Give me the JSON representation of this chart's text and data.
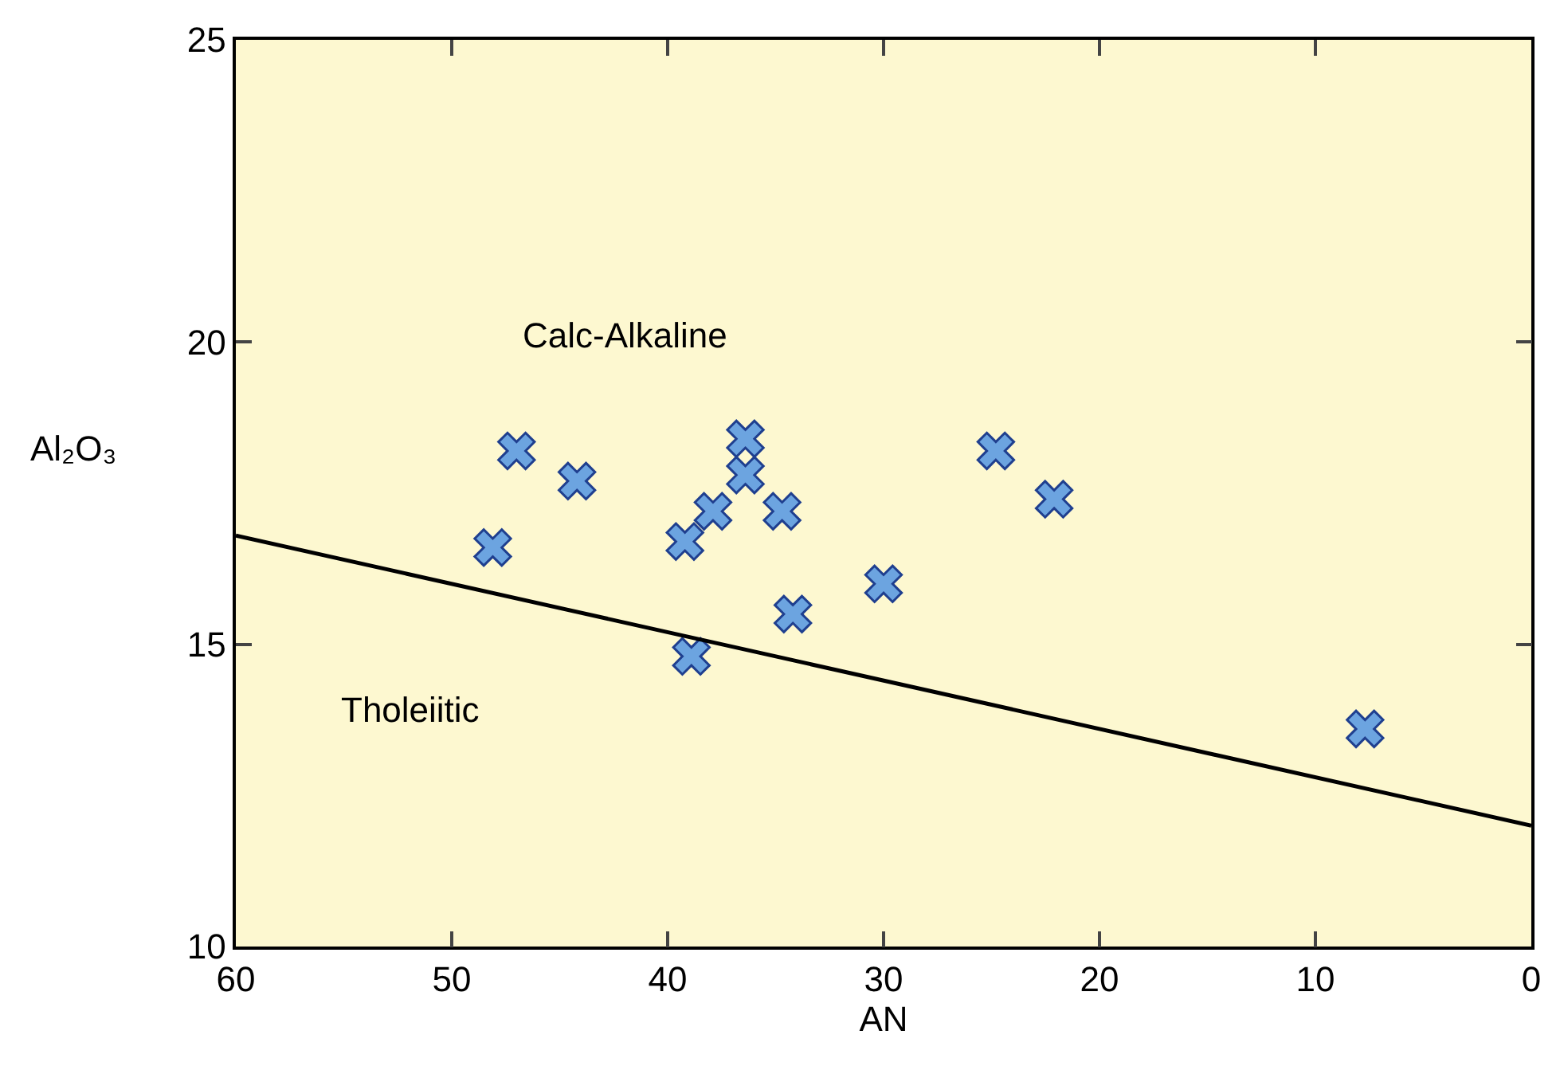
{
  "chart_data": {
    "type": "scatter",
    "xlabel": "AN",
    "ylabel": "Al₂O₃",
    "xlim": [
      60,
      0
    ],
    "xticks": [
      60,
      50,
      40,
      30,
      20,
      10,
      0
    ],
    "ylim": [
      10,
      25
    ],
    "yticks": [
      10,
      15,
      20,
      25
    ],
    "grid": false,
    "series": [
      {
        "marker": "cross",
        "color": "#6ca4e0",
        "x": [
          48.1,
          47.0,
          44.2,
          39.2,
          37.9,
          38.9,
          36.4,
          36.4,
          34.7,
          34.2,
          30.0,
          24.8,
          22.1,
          7.7
        ],
        "values": [
          16.6,
          18.2,
          17.7,
          16.7,
          17.2,
          14.8,
          18.4,
          17.8,
          17.2,
          15.5,
          16.0,
          18.2,
          17.4,
          13.6
        ]
      },
      {
        "type": "line",
        "color": "#000000",
        "line_style": "solid",
        "x": [
          60,
          0
        ],
        "values": [
          16.8,
          12.0
        ]
      }
    ],
    "annotations": [
      "Calc-Alkaline",
      "Tholeiitic"
    ]
  }
}
